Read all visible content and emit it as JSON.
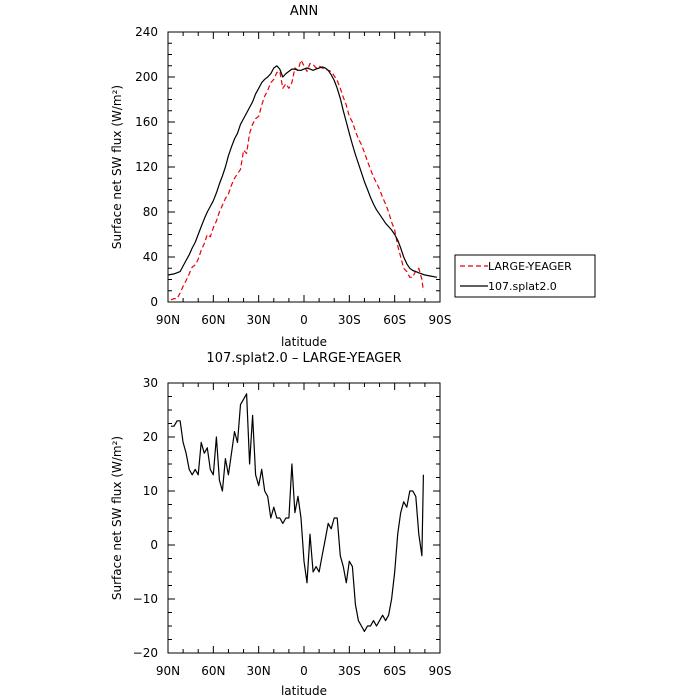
{
  "chart_data": [
    {
      "type": "line",
      "title": "ANN",
      "xlabel": "latitude",
      "ylabel": "Surface net SW flux (W/m²)",
      "xlim": [
        90,
        -90
      ],
      "ylim": [
        0,
        240
      ],
      "xticks": [
        90,
        60,
        30,
        0,
        -30,
        -60,
        -90
      ],
      "xtick_labels": [
        "90N",
        "60N",
        "30N",
        "0",
        "30S",
        "60S",
        "90S"
      ],
      "yticks": [
        0,
        40,
        80,
        120,
        160,
        200,
        240
      ],
      "ytick_labels": [
        "0",
        "40",
        "80",
        "120",
        "160",
        "200",
        "240"
      ],
      "legend_position": "right",
      "series": [
        {
          "name": "LARGE-YEAGER",
          "color": "#e8000b",
          "dash": "dashed",
          "x": [
            88,
            86,
            84,
            82,
            80,
            78,
            76,
            74,
            72,
            70,
            68,
            66,
            64,
            62,
            60,
            58,
            56,
            54,
            52,
            50,
            48,
            46,
            44,
            42,
            40,
            38,
            36,
            34,
            32,
            30,
            28,
            26,
            24,
            22,
            20,
            18,
            16,
            14,
            12,
            10,
            8,
            6,
            4,
            2,
            0,
            -2,
            -4,
            -6,
            -8,
            -10,
            -12,
            -14,
            -16,
            -18,
            -20,
            -22,
            -24,
            -26,
            -28,
            -30,
            -32,
            -34,
            -36,
            -38,
            -40,
            -42,
            -44,
            -46,
            -48,
            -50,
            -52,
            -54,
            -56,
            -58,
            -60,
            -62,
            -64,
            -66,
            -68,
            -70,
            -72,
            -74,
            -76,
            -78,
            -79
          ],
          "y": [
            2,
            3,
            3,
            8,
            14,
            19,
            25,
            31,
            33,
            38,
            46,
            52,
            60,
            58,
            66,
            72,
            80,
            86,
            92,
            96,
            104,
            110,
            114,
            118,
            135,
            132,
            150,
            158,
            163,
            165,
            175,
            183,
            188,
            195,
            198,
            204,
            205,
            190,
            194,
            190,
            195,
            208,
            206,
            215,
            210,
            205,
            212,
            211,
            208,
            210,
            208,
            207,
            206,
            205,
            201,
            197,
            190,
            182,
            175,
            165,
            160,
            152,
            145,
            140,
            133,
            125,
            118,
            111,
            106,
            100,
            93,
            87,
            80,
            71,
            64,
            50,
            40,
            30,
            27,
            22,
            22,
            28,
            30,
            20,
            10
          ]
        },
        {
          "name": "107.splat2.0",
          "color": "#000000",
          "dash": "solid",
          "x": [
            90,
            86,
            82,
            80,
            78,
            76,
            74,
            72,
            70,
            68,
            66,
            64,
            62,
            60,
            58,
            56,
            54,
            52,
            50,
            48,
            46,
            44,
            42,
            40,
            38,
            36,
            34,
            32,
            30,
            28,
            26,
            24,
            22,
            20,
            18,
            16,
            14,
            12,
            10,
            8,
            6,
            4,
            2,
            0,
            -2,
            -4,
            -6,
            -8,
            -10,
            -12,
            -14,
            -16,
            -18,
            -20,
            -22,
            -24,
            -26,
            -28,
            -30,
            -32,
            -34,
            -36,
            -38,
            -40,
            -42,
            -44,
            -46,
            -48,
            -50,
            -52,
            -54,
            -56,
            -58,
            -60,
            -62,
            -64,
            -66,
            -68,
            -70,
            -72,
            -74,
            -76,
            -78,
            -80,
            -84,
            -88
          ],
          "y": [
            24,
            25,
            27,
            32,
            37,
            42,
            48,
            53,
            60,
            67,
            74,
            80,
            85,
            90,
            97,
            105,
            112,
            120,
            130,
            138,
            145,
            150,
            158,
            163,
            168,
            173,
            178,
            185,
            190,
            195,
            198,
            200,
            203,
            208,
            210,
            207,
            200,
            203,
            205,
            207,
            207,
            206,
            206,
            207,
            208,
            207,
            206,
            207,
            208,
            209,
            208,
            206,
            202,
            197,
            190,
            181,
            170,
            160,
            150,
            140,
            131,
            123,
            115,
            107,
            100,
            93,
            87,
            82,
            78,
            74,
            70,
            67,
            64,
            60,
            55,
            48,
            40,
            34,
            30,
            28,
            27,
            26,
            25,
            24,
            23,
            22
          ]
        }
      ]
    },
    {
      "type": "line",
      "title": "107.splat2.0 – LARGE-YEAGER",
      "xlabel": "latitude",
      "ylabel": "Surface net SW flux (W/m²)",
      "xlim": [
        90,
        -90
      ],
      "ylim": [
        -20,
        30
      ],
      "xticks": [
        90,
        60,
        30,
        0,
        -30,
        -60,
        -90
      ],
      "xtick_labels": [
        "90N",
        "60N",
        "30N",
        "0",
        "30S",
        "60S",
        "90S"
      ],
      "yticks": [
        -20,
        -10,
        0,
        10,
        20,
        30
      ],
      "ytick_labels": [
        "−20",
        "−10",
        "0",
        "10",
        "20",
        "30"
      ],
      "series": [
        {
          "name": "",
          "color": "#000000",
          "dash": "solid",
          "x": [
            88,
            86,
            84,
            82,
            80,
            78,
            76,
            74,
            72,
            70,
            68,
            66,
            64,
            62,
            60,
            58,
            56,
            54,
            52,
            50,
            48,
            46,
            44,
            42,
            40,
            38,
            36,
            34,
            32,
            30,
            28,
            26,
            24,
            22,
            20,
            18,
            16,
            14,
            12,
            10,
            8,
            6,
            4,
            2,
            0,
            -2,
            -4,
            -6,
            -8,
            -10,
            -12,
            -14,
            -16,
            -18,
            -20,
            -22,
            -24,
            -26,
            -28,
            -30,
            -32,
            -34,
            -36,
            -38,
            -40,
            -42,
            -44,
            -46,
            -48,
            -50,
            -52,
            -54,
            -56,
            -58,
            -60,
            -62,
            -64,
            -66,
            -68,
            -70,
            -72,
            -74,
            -76,
            -78,
            -79
          ],
          "y": [
            22,
            22,
            23,
            23,
            19,
            17,
            14,
            13,
            14,
            13,
            19,
            17,
            18,
            14,
            13,
            20,
            12,
            10,
            16,
            13,
            17,
            21,
            19,
            26,
            27,
            28,
            15,
            24,
            13,
            11,
            14,
            10,
            9,
            5,
            7,
            5,
            5,
            4,
            5,
            5,
            15,
            6,
            9,
            5,
            -3,
            -7,
            2,
            -5,
            -4,
            -5,
            -2,
            1,
            4,
            3,
            5,
            5,
            -2,
            -4,
            -7,
            -3,
            -4,
            -11,
            -14,
            -15,
            -16,
            -15,
            -15,
            -14,
            -15,
            -14,
            -13,
            -14,
            -13,
            -10,
            -5,
            2,
            6,
            8,
            7,
            10,
            10,
            9,
            2,
            -2,
            13
          ]
        }
      ]
    }
  ]
}
